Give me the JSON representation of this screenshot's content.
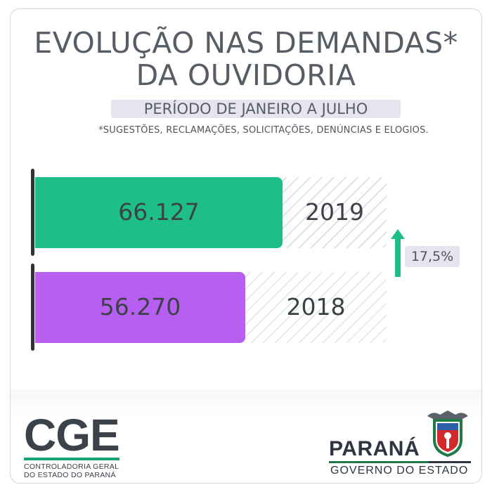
{
  "title": {
    "line1": "EVOLUÇÃO NAS DEMANDAS*",
    "line2": "DA OUVIDORIA"
  },
  "period": "PERÍODO DE JANEIRO A JULHO",
  "footnote": "*SUGESTÕES, RECLAMAÇÕES, SOLICITAÇÕES, DENÚNCIAS E ELOGIOS.",
  "growth_label": "17,5%",
  "colors": {
    "bar_2019": "#1dbf86",
    "bar_2018": "#b65ff0",
    "hatch_2019": "#d9d7e6",
    "hatch_2018": "#d8ecdf",
    "growth_arrow": "#1dbf86",
    "text": "#565d64"
  },
  "chart_data": {
    "type": "bar",
    "orientation": "horizontal",
    "categories": [
      "2019",
      "2018"
    ],
    "values": [
      66127,
      56270
    ],
    "value_labels": [
      "66.127",
      "56.270"
    ],
    "xlim": [
      0,
      94000
    ],
    "grid": false,
    "annotations": [
      "17,5%"
    ]
  },
  "logos": {
    "cge": {
      "name": "CGE",
      "line1": "CONTROLADORIA GERAL",
      "line2": "DO ESTADO DO PARANÁ"
    },
    "parana": {
      "name": "PARANÁ",
      "subtitle": "GOVERNO DO ESTADO"
    }
  }
}
